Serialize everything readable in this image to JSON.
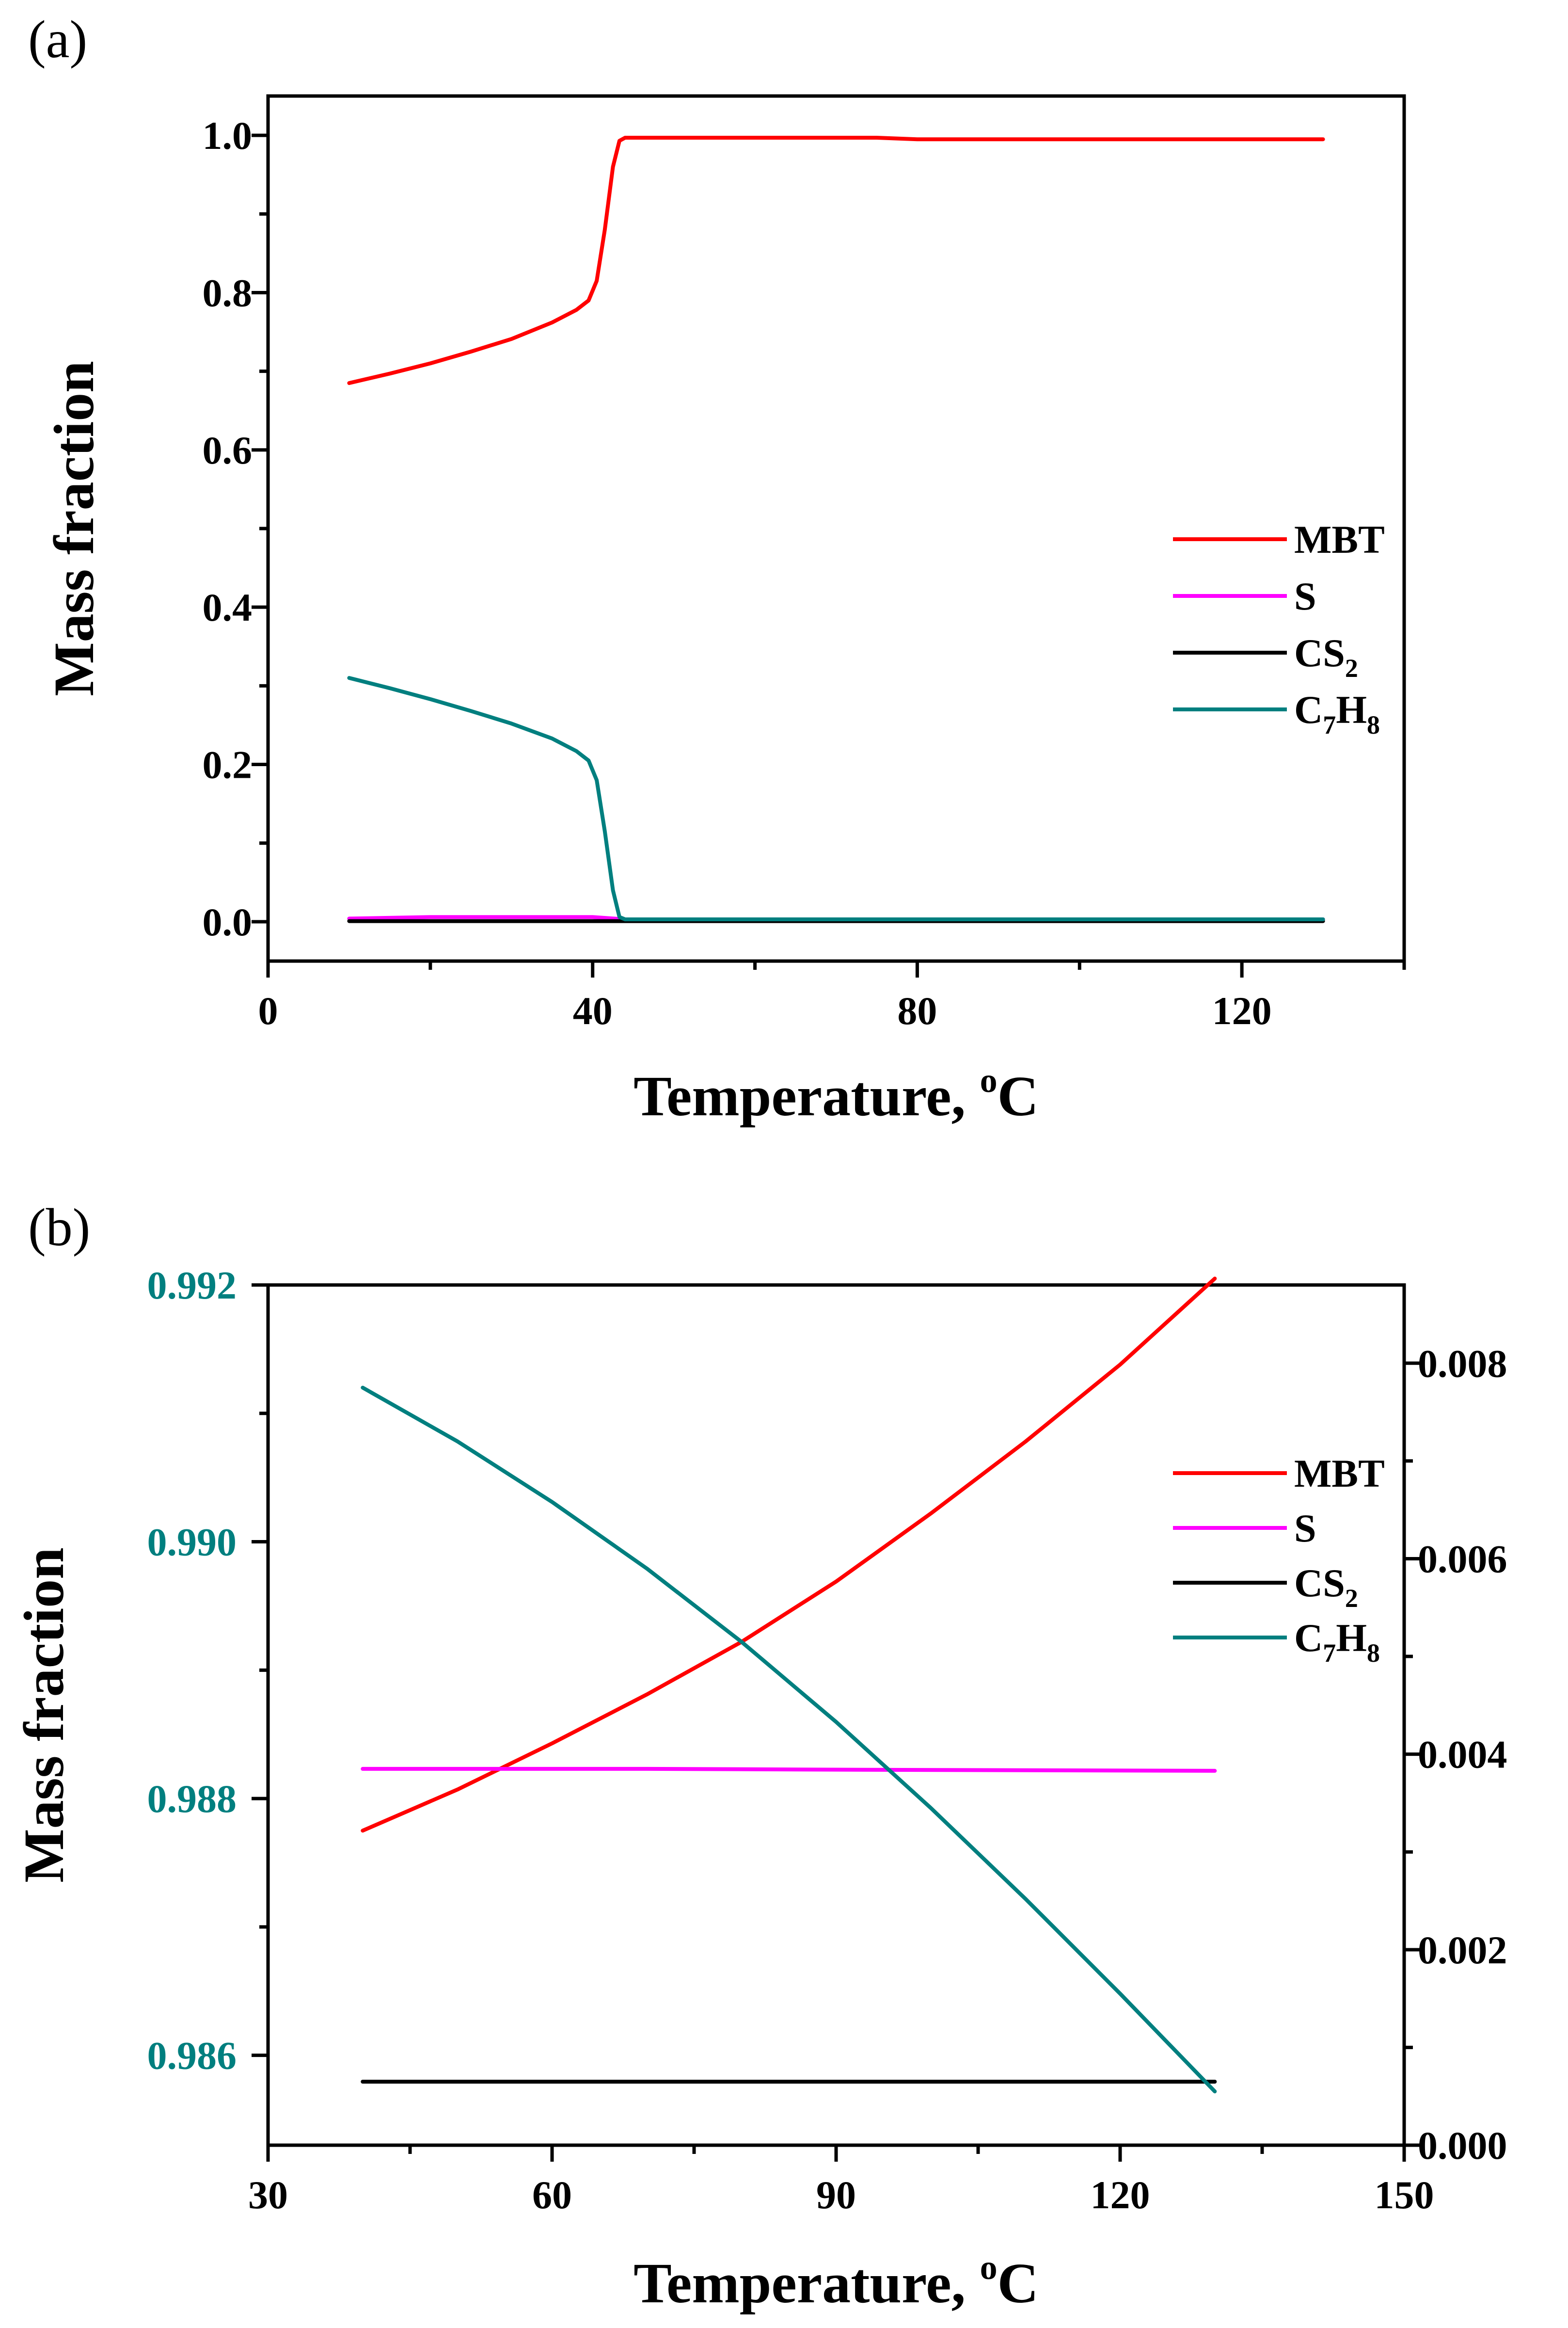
{
  "chart_data": [
    {
      "panel_label": "(a)",
      "type": "line",
      "xlabel": "Temperature, ",
      "xlabel_sup": "o",
      "xlabel_unit": "C",
      "ylabel": "Mass fraction",
      "xlim": [
        0,
        140
      ],
      "ylim": [
        -0.05,
        1.05
      ],
      "xticks": [
        0,
        40,
        80,
        120
      ],
      "xtick_labels": [
        "0",
        "40",
        "80",
        "120"
      ],
      "xminor": [
        20,
        60,
        100,
        140
      ],
      "yticks": [
        0.0,
        0.2,
        0.4,
        0.6,
        0.8,
        1.0
      ],
      "ytick_labels": [
        "0.0",
        "0.2",
        "0.4",
        "0.6",
        "0.8",
        "1.0"
      ],
      "yminor": [
        0.1,
        0.3,
        0.5,
        0.7,
        0.9
      ],
      "legend_position": "center-right",
      "series": [
        {
          "name": "MBT",
          "name_parts": [
            [
              "MBT",
              false
            ]
          ],
          "color": "#ff0000",
          "x": [
            10,
            15,
            20,
            25,
            30,
            35,
            38,
            39.5,
            40.5,
            41.5,
            42.5,
            43.3,
            44,
            50,
            75,
            80,
            130
          ],
          "y": [
            0.685,
            0.697,
            0.71,
            0.725,
            0.741,
            0.762,
            0.778,
            0.79,
            0.815,
            0.88,
            0.96,
            0.993,
            0.997,
            0.997,
            0.997,
            0.995,
            0.995
          ]
        },
        {
          "name": "S",
          "name_parts": [
            [
              "S",
              false
            ]
          ],
          "color": "#ff00ff",
          "x": [
            10,
            20,
            40,
            44,
            130
          ],
          "y": [
            0.004,
            0.006,
            0.006,
            0.003,
            0.003
          ]
        },
        {
          "name": "CS2",
          "name_parts": [
            [
              "CS",
              false
            ],
            [
              "2",
              true
            ]
          ],
          "color": "#000000",
          "x": [
            10,
            43,
            130
          ],
          "y": [
            0.0008,
            0.0008,
            0.0008
          ]
        },
        {
          "name": "C7H8",
          "name_parts": [
            [
              "C",
              false
            ],
            [
              "7",
              true
            ],
            [
              "H",
              false
            ],
            [
              "8",
              true
            ]
          ],
          "color": "#007f7f",
          "x": [
            10,
            15,
            20,
            25,
            30,
            35,
            38,
            39.5,
            40.5,
            41.5,
            42.5,
            43.3,
            44,
            130
          ],
          "y": [
            0.31,
            0.297,
            0.283,
            0.268,
            0.252,
            0.233,
            0.217,
            0.205,
            0.18,
            0.115,
            0.04,
            0.006,
            0.003,
            0.003
          ]
        }
      ]
    },
    {
      "panel_label": "(b)",
      "type": "line",
      "xlabel": "Temperature, ",
      "xlabel_sup": "o",
      "xlabel_unit": "C",
      "ylabel": "Mass fraction",
      "xlim": [
        30,
        150
      ],
      "ylim": [
        0.9853,
        0.992
      ],
      "y2lim": [
        0,
        0.0088
      ],
      "xticks": [
        30,
        60,
        90,
        120,
        150
      ],
      "xtick_labels": [
        "30",
        "60",
        "90",
        "120",
        "150"
      ],
      "xminor": [
        45,
        75,
        105,
        135
      ],
      "yticks": [
        0.986,
        0.988,
        0.99,
        0.992
      ],
      "ytick_labels": [
        "0.986",
        "0.988",
        "0.990",
        "0.992"
      ],
      "yminor": [
        0.987,
        0.989,
        0.991
      ],
      "ytick_color": "#007f7f",
      "y2ticks": [
        0,
        0.002,
        0.004,
        0.006,
        0.008
      ],
      "y2tick_labels": [
        "0.000",
        "0.002",
        "0.004",
        "0.006",
        "0.008"
      ],
      "y2minor": [
        0.001,
        0.003,
        0.005,
        0.007
      ],
      "legend_position": "top-right",
      "series": [
        {
          "name": "MBT",
          "name_parts": [
            [
              "MBT",
              false
            ]
          ],
          "color": "#ff0000",
          "axis": "left",
          "x": [
            40,
            50,
            60,
            70,
            80,
            90,
            100,
            110,
            120,
            130
          ],
          "y": [
            0.98775,
            0.98807,
            0.98843,
            0.98881,
            0.98922,
            0.98969,
            0.99022,
            0.99078,
            0.99138,
            0.99205
          ]
        },
        {
          "name": "S",
          "name_parts": [
            [
              "S",
              false
            ]
          ],
          "color": "#ff00ff",
          "axis": "right",
          "x": [
            40,
            70,
            95,
            130
          ],
          "y": [
            0.00385,
            0.00385,
            0.00384,
            0.00383
          ]
        },
        {
          "name": "CS2",
          "name_parts": [
            [
              "CS",
              false
            ],
            [
              "2",
              true
            ]
          ],
          "color": "#000000",
          "axis": "right",
          "x": [
            40,
            130
          ],
          "y": [
            0.00065,
            0.00065
          ]
        },
        {
          "name": "C7H8",
          "name_parts": [
            [
              "C",
              false
            ],
            [
              "7",
              true
            ],
            [
              "H",
              false
            ],
            [
              "8",
              true
            ]
          ],
          "color": "#007f7f",
          "axis": "right",
          "x": [
            40,
            50,
            60,
            70,
            80,
            90,
            100,
            110,
            120,
            130
          ],
          "y": [
            0.00775,
            0.0072,
            0.00658,
            0.0059,
            0.00515,
            0.00433,
            0.00345,
            0.00252,
            0.00155,
            0.00055
          ]
        }
      ]
    }
  ]
}
